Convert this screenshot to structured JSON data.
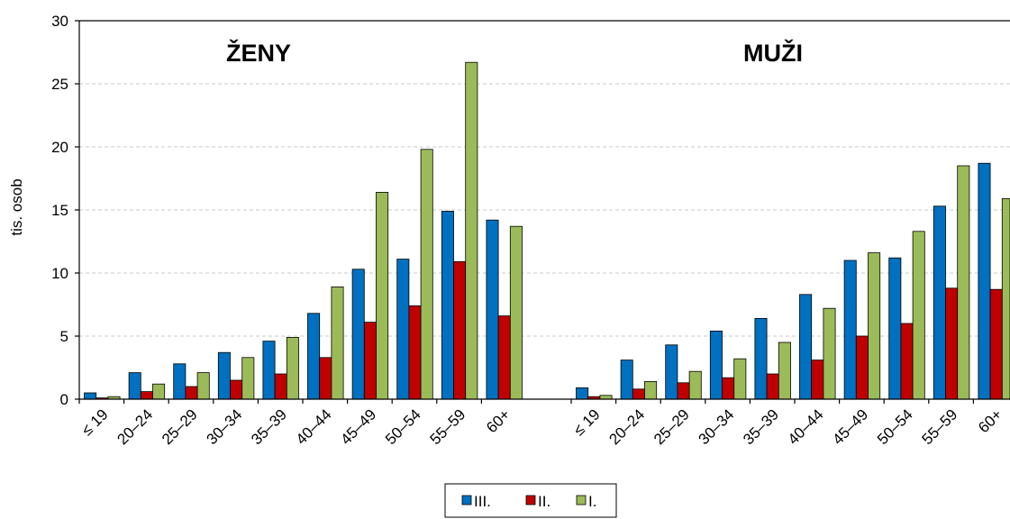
{
  "chart_data": {
    "type": "bar",
    "ylabel": "tis. osob",
    "ylim": [
      0,
      30
    ],
    "yticks": [
      0,
      5,
      10,
      15,
      20,
      25,
      30
    ],
    "grid": true,
    "legend_position": "bottom-center",
    "panels": [
      "ŽENY",
      "MUŽI"
    ],
    "categories": [
      "≤ 19",
      "20–24",
      "25–29",
      "30–34",
      "35–39",
      "40–44",
      "45–49",
      "50–54",
      "55–59",
      "60+"
    ],
    "series": [
      {
        "name": "III.",
        "color": "#0070c0",
        "values_zeny": [
          0.5,
          2.1,
          2.8,
          3.7,
          4.6,
          6.8,
          10.3,
          11.1,
          14.9,
          14.2
        ],
        "values_muzi": [
          0.9,
          3.1,
          4.3,
          5.4,
          6.4,
          8.3,
          11.0,
          11.2,
          15.3,
          18.7
        ]
      },
      {
        "name": "II.",
        "color": "#c00000",
        "values_zeny": [
          0.1,
          0.6,
          1.0,
          1.5,
          2.0,
          3.3,
          6.1,
          7.4,
          10.9,
          6.6
        ],
        "values_muzi": [
          0.2,
          0.8,
          1.3,
          1.7,
          2.0,
          3.1,
          5.0,
          6.0,
          8.8,
          8.7
        ]
      },
      {
        "name": "I.",
        "color": "#9bbb59",
        "values_zeny": [
          0.2,
          1.2,
          2.1,
          3.3,
          4.9,
          8.9,
          16.4,
          19.8,
          26.7,
          13.7
        ],
        "values_muzi": [
          0.3,
          1.4,
          2.2,
          3.2,
          4.5,
          7.2,
          11.6,
          13.3,
          18.5,
          15.9
        ]
      }
    ]
  }
}
